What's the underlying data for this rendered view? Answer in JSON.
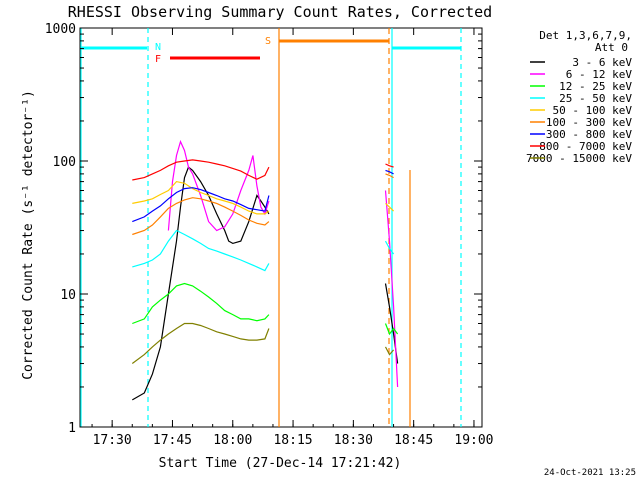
{
  "chart_data": {
    "type": "line",
    "title": "RHESSI Observing Summary Count Rates, Corrected",
    "xlabel": "Start Time (27-Dec-14 17:21:42)",
    "ylabel": "Corrected Count Rate (s⁻¹ detector⁻¹)",
    "y_scale": "log",
    "ylim": [
      1,
      1000
    ],
    "xlim_minutes_since_17_00": [
      22,
      122
    ],
    "x_ticks": [
      {
        "label": "17:30",
        "t": 30
      },
      {
        "label": "17:45",
        "t": 45
      },
      {
        "label": "18:00",
        "t": 60
      },
      {
        "label": "18:15",
        "t": 75
      },
      {
        "label": "18:30",
        "t": 90
      },
      {
        "label": "18:45",
        "t": 105
      },
      {
        "label": "19:00",
        "t": 120
      }
    ],
    "y_ticks": [
      {
        "label": "1",
        "v": 1
      },
      {
        "label": "10",
        "v": 10
      },
      {
        "label": "100",
        "v": 100
      },
      {
        "label": "1000",
        "v": 1000
      }
    ],
    "legend_header": [
      "Det 1,3,6,7,9,",
      "Att 0"
    ],
    "legend_placement": "right",
    "series": [
      {
        "name": "3 - 6 keV",
        "color": "#000000",
        "points": [
          [
            35,
            1.6
          ],
          [
            38,
            1.8
          ],
          [
            40,
            2.5
          ],
          [
            42,
            4
          ],
          [
            44,
            10
          ],
          [
            46,
            25
          ],
          [
            47,
            45
          ],
          [
            48,
            75
          ],
          [
            49,
            90
          ],
          [
            50,
            85
          ],
          [
            52,
            70
          ],
          [
            54,
            55
          ],
          [
            56,
            40
          ],
          [
            58,
            30
          ],
          [
            59,
            25
          ],
          [
            60,
            24
          ],
          [
            62,
            25
          ],
          [
            64,
            35
          ],
          [
            66,
            55
          ],
          [
            67,
            50
          ],
          [
            68,
            45
          ],
          [
            69,
            40
          ]
        ],
        "points2": [
          [
            98,
            12
          ],
          [
            99,
            8
          ],
          [
            100,
            5
          ],
          [
            101,
            3
          ]
        ]
      },
      {
        "name": "6 - 12 keV",
        "color": "#ff00ff",
        "points": [
          [
            44,
            30
          ],
          [
            45,
            70
          ],
          [
            46,
            110
          ],
          [
            47,
            140
          ],
          [
            48,
            120
          ],
          [
            49,
            90
          ],
          [
            50,
            80
          ],
          [
            52,
            55
          ],
          [
            54,
            35
          ],
          [
            56,
            30
          ],
          [
            58,
            32
          ],
          [
            60,
            40
          ],
          [
            62,
            60
          ],
          [
            64,
            85
          ],
          [
            65,
            110
          ],
          [
            66,
            65
          ],
          [
            67,
            45
          ],
          [
            68,
            40
          ],
          [
            69,
            50
          ]
        ],
        "points2": [
          [
            98,
            60
          ],
          [
            99,
            25
          ],
          [
            100,
            8
          ],
          [
            101,
            2
          ]
        ]
      },
      {
        "name": "12 - 25 keV",
        "color": "#00ff00",
        "points": [
          [
            35,
            6
          ],
          [
            38,
            6.5
          ],
          [
            40,
            8
          ],
          [
            42,
            9
          ],
          [
            44,
            10
          ],
          [
            46,
            11.5
          ],
          [
            48,
            12
          ],
          [
            50,
            11.5
          ],
          [
            52,
            10.5
          ],
          [
            54,
            9.5
          ],
          [
            56,
            8.5
          ],
          [
            58,
            7.5
          ],
          [
            60,
            7
          ],
          [
            62,
            6.5
          ],
          [
            64,
            6.5
          ],
          [
            66,
            6.3
          ],
          [
            68,
            6.5
          ],
          [
            69,
            7
          ]
        ],
        "points2": [
          [
            98,
            6
          ],
          [
            99,
            5
          ],
          [
            100,
            5.5
          ],
          [
            101,
            5
          ]
        ]
      },
      {
        "name": "25 - 50 keV",
        "color": "#00ffff",
        "points": [
          [
            35,
            16
          ],
          [
            38,
            17
          ],
          [
            40,
            18
          ],
          [
            42,
            20
          ],
          [
            44,
            25
          ],
          [
            46,
            30
          ],
          [
            48,
            28
          ],
          [
            50,
            26
          ],
          [
            52,
            24
          ],
          [
            54,
            22
          ],
          [
            56,
            21
          ],
          [
            58,
            20
          ],
          [
            60,
            19
          ],
          [
            62,
            18
          ],
          [
            64,
            17
          ],
          [
            66,
            16
          ],
          [
            68,
            15
          ],
          [
            69,
            17
          ]
        ],
        "points2": [
          [
            98,
            25
          ],
          [
            99,
            22
          ],
          [
            100,
            20
          ]
        ]
      },
      {
        "name": "50 - 100 keV",
        "color": "#ffcc00",
        "points": [
          [
            35,
            48
          ],
          [
            38,
            50
          ],
          [
            40,
            52
          ],
          [
            42,
            56
          ],
          [
            44,
            60
          ],
          [
            46,
            70
          ],
          [
            48,
            68
          ],
          [
            50,
            62
          ],
          [
            52,
            58
          ],
          [
            54,
            55
          ],
          [
            56,
            52
          ],
          [
            58,
            50
          ],
          [
            60,
            48
          ],
          [
            62,
            45
          ],
          [
            64,
            42
          ],
          [
            66,
            40
          ],
          [
            68,
            40
          ],
          [
            69,
            42
          ]
        ],
        "points2": [
          [
            98,
            48
          ],
          [
            99,
            45
          ],
          [
            100,
            42
          ]
        ]
      },
      {
        "name": "100 - 300 keV",
        "color": "#ff8000",
        "points": [
          [
            35,
            28
          ],
          [
            38,
            30
          ],
          [
            40,
            33
          ],
          [
            42,
            38
          ],
          [
            44,
            44
          ],
          [
            46,
            48
          ],
          [
            48,
            51
          ],
          [
            50,
            53
          ],
          [
            52,
            52
          ],
          [
            54,
            50
          ],
          [
            56,
            48
          ],
          [
            58,
            45
          ],
          [
            60,
            42
          ],
          [
            62,
            39
          ],
          [
            64,
            36
          ],
          [
            66,
            34
          ],
          [
            68,
            33
          ],
          [
            69,
            35
          ]
        ],
        "points2": [
          [
            98,
            80
          ],
          [
            99,
            78
          ],
          [
            100,
            75
          ]
        ]
      },
      {
        "name": "300 - 800 keV",
        "color": "#0000ff",
        "points": [
          [
            35,
            35
          ],
          [
            38,
            38
          ],
          [
            40,
            42
          ],
          [
            42,
            46
          ],
          [
            44,
            52
          ],
          [
            46,
            58
          ],
          [
            48,
            62
          ],
          [
            50,
            63
          ],
          [
            52,
            61
          ],
          [
            54,
            58
          ],
          [
            56,
            55
          ],
          [
            58,
            52
          ],
          [
            60,
            50
          ],
          [
            62,
            47
          ],
          [
            64,
            44
          ],
          [
            66,
            43
          ],
          [
            68,
            42
          ],
          [
            69,
            55
          ]
        ],
        "points2": [
          [
            98,
            85
          ],
          [
            99,
            83
          ],
          [
            100,
            80
          ]
        ]
      },
      {
        "name": "800 - 7000 keV",
        "color": "#ff0000",
        "points": [
          [
            35,
            72
          ],
          [
            38,
            75
          ],
          [
            40,
            80
          ],
          [
            42,
            85
          ],
          [
            44,
            92
          ],
          [
            46,
            98
          ],
          [
            48,
            100
          ],
          [
            50,
            102
          ],
          [
            52,
            100
          ],
          [
            54,
            98
          ],
          [
            56,
            95
          ],
          [
            58,
            92
          ],
          [
            60,
            88
          ],
          [
            62,
            84
          ],
          [
            64,
            78
          ],
          [
            66,
            73
          ],
          [
            68,
            78
          ],
          [
            69,
            90
          ]
        ],
        "points2": [
          [
            98,
            95
          ],
          [
            99,
            92
          ],
          [
            100,
            90
          ]
        ]
      },
      {
        "name": "7000 - 15000 keV",
        "color": "#808000",
        "points": [
          [
            35,
            3
          ],
          [
            38,
            3.5
          ],
          [
            40,
            4
          ],
          [
            42,
            4.5
          ],
          [
            44,
            5
          ],
          [
            46,
            5.5
          ],
          [
            48,
            6
          ],
          [
            50,
            6
          ],
          [
            52,
            5.8
          ],
          [
            54,
            5.5
          ],
          [
            56,
            5.2
          ],
          [
            58,
            5
          ],
          [
            60,
            4.8
          ],
          [
            62,
            4.6
          ],
          [
            64,
            4.5
          ],
          [
            66,
            4.5
          ],
          [
            68,
            4.6
          ],
          [
            69,
            5.5
          ]
        ],
        "points2": [
          [
            98,
            4
          ],
          [
            99,
            3.5
          ],
          [
            100,
            3.8
          ]
        ]
      }
    ],
    "markers": [
      {
        "label": "N",
        "color": "#00ffff",
        "x": 38.5
      },
      {
        "label": "F",
        "color": "#ff0000",
        "x": 40.5
      },
      {
        "label": "S",
        "color": "#ff8000",
        "x": 70.5
      }
    ]
  },
  "colors": {
    "saa": "#00ffff",
    "flare": "#ff0000",
    "night": "#ff8000"
  },
  "footer": {
    "date": "24-Oct-2021 13:25"
  }
}
